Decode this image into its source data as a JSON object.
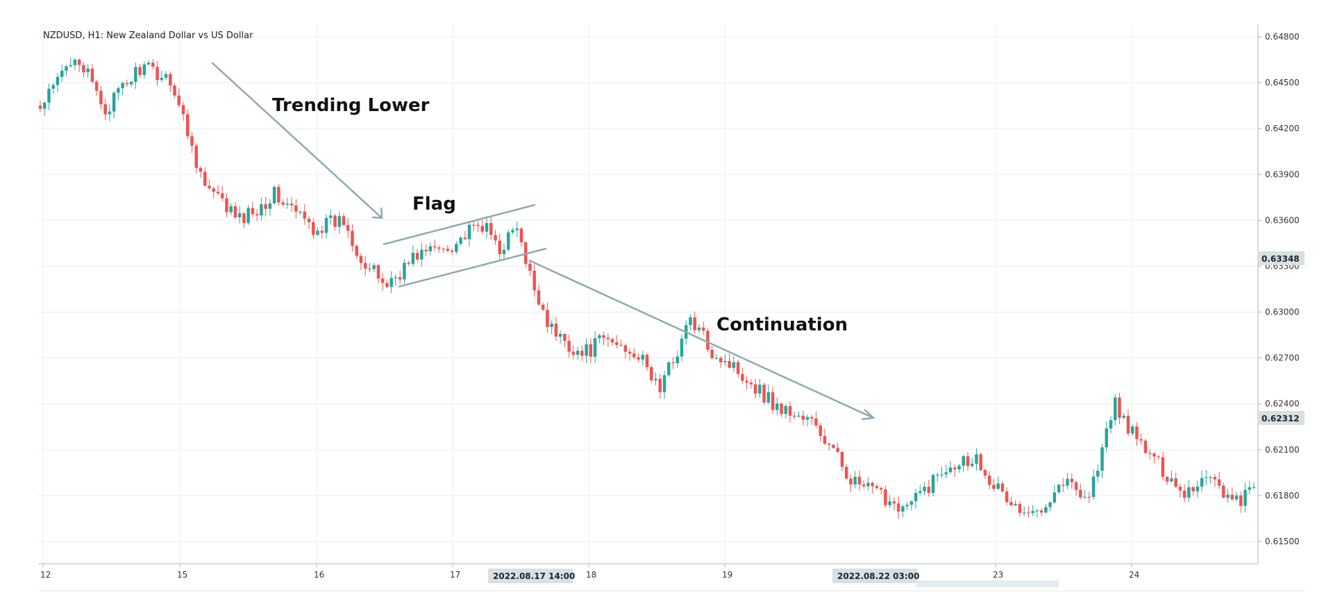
{
  "chart_data": {
    "type": "candlestick",
    "title": "NZDUSD, H1: New Zealand Dollar vs US Dollar",
    "y_axis": {
      "ticks": [
        "0.64800",
        "0.64500",
        "0.64200",
        "0.63900",
        "0.63600",
        "0.63300",
        "0.63000",
        "0.62700",
        "0.62400",
        "0.62100",
        "0.61800",
        "0.61500"
      ],
      "ylim": [
        0.6137,
        0.6487
      ],
      "position": "right"
    },
    "x_axis": {
      "ticks": [
        "12",
        "15",
        "16",
        "17",
        "18",
        "19",
        "23",
        "24"
      ]
    },
    "price_badges": [
      "0.63348",
      "0.62312"
    ],
    "time_badges": [
      "2022.08.17 14:00",
      "2022.08.22 03:00"
    ],
    "candle_series": {
      "anchors": [
        [
          0,
          0.6432
        ],
        [
          8,
          0.647
        ],
        [
          15,
          0.6432
        ],
        [
          23,
          0.646
        ],
        [
          30,
          0.6453
        ],
        [
          38,
          0.6382
        ],
        [
          46,
          0.636
        ],
        [
          54,
          0.6377
        ],
        [
          63,
          0.6355
        ],
        [
          70,
          0.636
        ],
        [
          75,
          0.633
        ],
        [
          80,
          0.6318
        ],
        [
          87,
          0.6338
        ],
        [
          94,
          0.6343
        ],
        [
          102,
          0.6357
        ],
        [
          106,
          0.6342
        ],
        [
          110,
          0.6355
        ],
        [
          112,
          0.633
        ],
        [
          118,
          0.6288
        ],
        [
          125,
          0.6272
        ],
        [
          130,
          0.6282
        ],
        [
          137,
          0.6275
        ],
        [
          143,
          0.625
        ],
        [
          150,
          0.6295
        ],
        [
          155,
          0.6275
        ],
        [
          162,
          0.626
        ],
        [
          170,
          0.6238
        ],
        [
          178,
          0.6228
        ],
        [
          188,
          0.6188
        ],
        [
          200,
          0.6172
        ],
        [
          210,
          0.6202
        ],
        [
          216,
          0.6205
        ],
        [
          222,
          0.618
        ],
        [
          228,
          0.6165
        ],
        [
          236,
          0.619
        ],
        [
          242,
          0.618
        ],
        [
          248,
          0.624
        ],
        [
          252,
          0.622
        ],
        [
          258,
          0.62
        ],
        [
          264,
          0.6182
        ],
        [
          270,
          0.6195
        ],
        [
          275,
          0.6175
        ],
        [
          280,
          0.6183
        ]
      ],
      "count": 281
    },
    "annotations": [
      {
        "text": "Trending Lower"
      },
      {
        "text": "Flag"
      },
      {
        "text": "Continuation"
      }
    ],
    "colors": {
      "up": "#26a69a",
      "down": "#ef5350",
      "annotation_line": "#8ea9b3",
      "badge_bg": "#d7e1e3"
    }
  }
}
